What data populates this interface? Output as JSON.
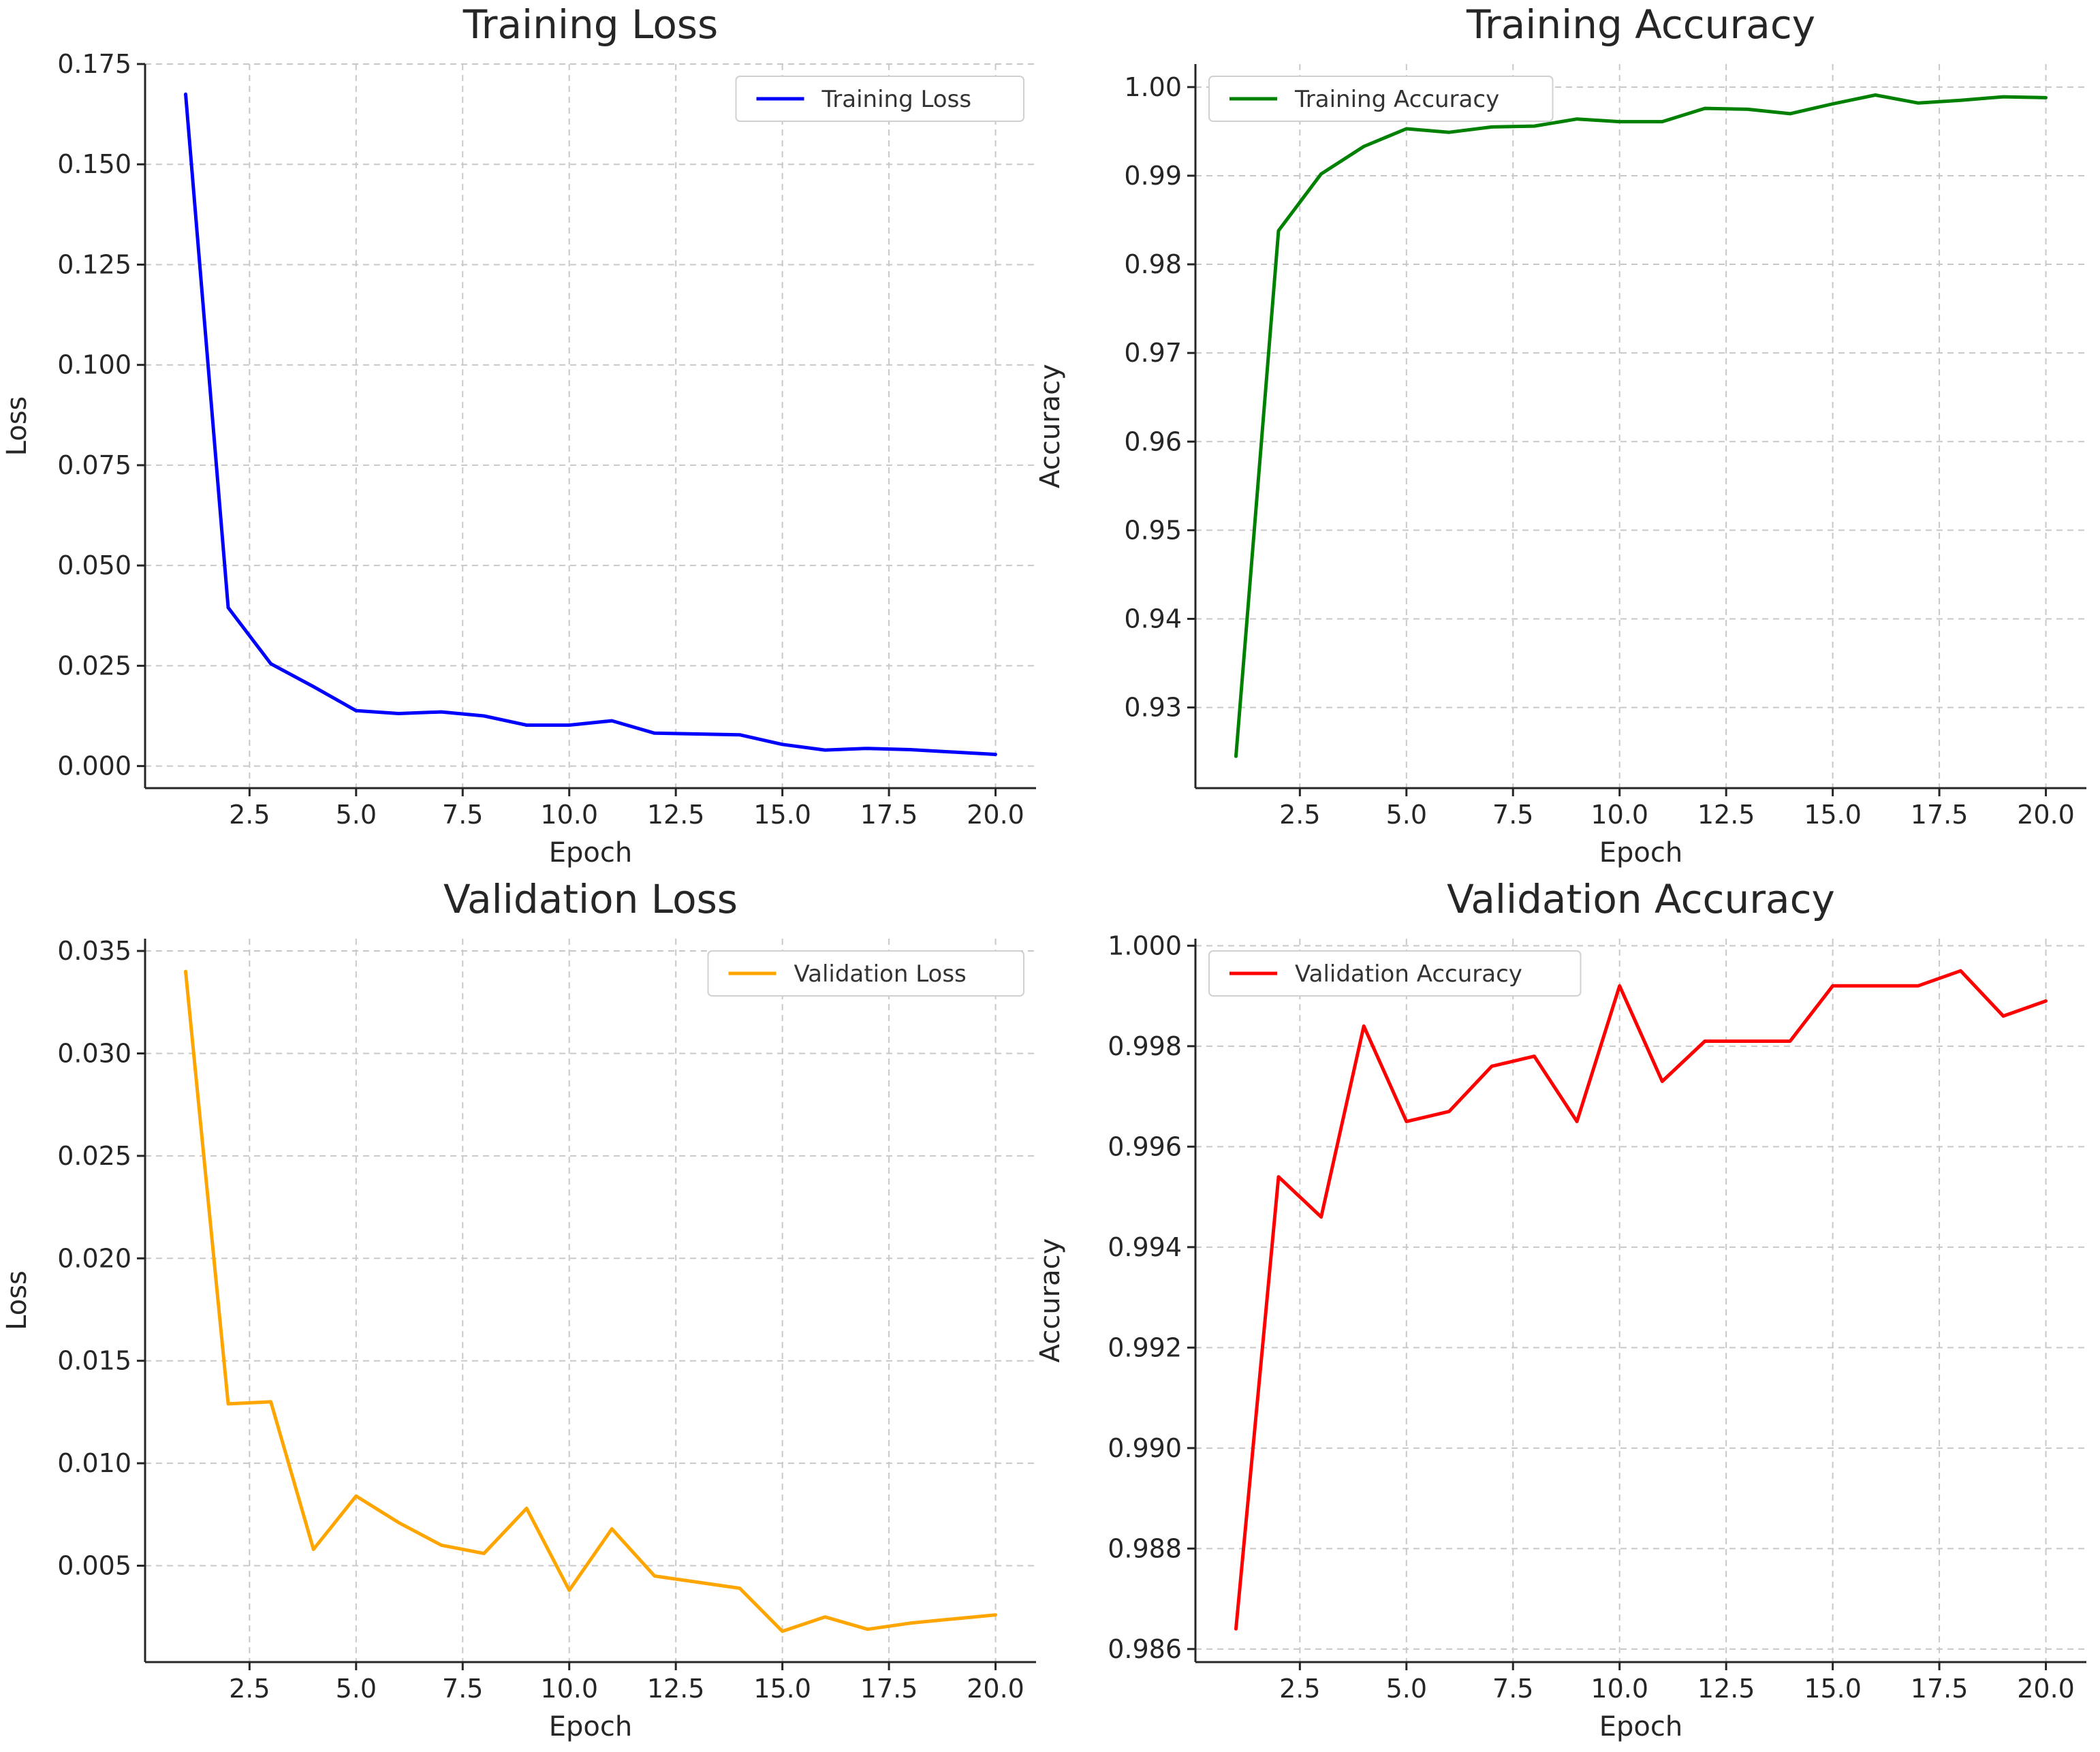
{
  "chart_data": [
    {
      "type": "line",
      "title": "Training Loss",
      "xlabel": "Epoch",
      "ylabel": "Loss",
      "xlim": [
        0.05,
        20.95
      ],
      "ylim": [
        -0.0055,
        0.175
      ],
      "xticks": [
        2.5,
        5.0,
        7.5,
        10.0,
        12.5,
        15.0,
        17.5,
        20.0
      ],
      "xtick_labels": [
        "2.5",
        "5.0",
        "7.5",
        "10.0",
        "12.5",
        "15.0",
        "17.5",
        "20.0"
      ],
      "yticks": [
        0.0,
        0.025,
        0.05,
        0.075,
        0.1,
        0.125,
        0.15,
        0.175
      ],
      "ytick_labels": [
        "0.000",
        "0.025",
        "0.050",
        "0.075",
        "0.100",
        "0.125",
        "0.150",
        "0.175"
      ],
      "grid": true,
      "legend": "upper-right",
      "series": [
        {
          "name": "Training Loss",
          "color": "#0000ff",
          "x": [
            1,
            2,
            3,
            4,
            5,
            6,
            7,
            8,
            9,
            10,
            11,
            12,
            13,
            14,
            15,
            16,
            17,
            18,
            19,
            20
          ],
          "y": [
            0.1675,
            0.0395,
            0.0255,
            0.0198,
            0.0138,
            0.0131,
            0.0135,
            0.0125,
            0.0102,
            0.0102,
            0.0113,
            0.0082,
            0.008,
            0.0078,
            0.0054,
            0.004,
            0.0044,
            0.0041,
            0.0035,
            0.0029
          ]
        }
      ]
    },
    {
      "type": "line",
      "title": "Training Accuracy",
      "xlabel": "Epoch",
      "ylabel": "Accuracy",
      "xlim": [
        0.05,
        20.95
      ],
      "ylim": [
        0.9209,
        1.0026
      ],
      "xticks": [
        2.5,
        5.0,
        7.5,
        10.0,
        12.5,
        15.0,
        17.5,
        20.0
      ],
      "xtick_labels": [
        "2.5",
        "5.0",
        "7.5",
        "10.0",
        "12.5",
        "15.0",
        "17.5",
        "20.0"
      ],
      "yticks": [
        0.93,
        0.94,
        0.95,
        0.96,
        0.97,
        0.98,
        0.99,
        1.0
      ],
      "ytick_labels": [
        "0.93",
        "0.94",
        "0.95",
        "0.96",
        "0.97",
        "0.98",
        "0.99",
        "1.00"
      ],
      "grid": true,
      "legend": "upper-left",
      "series": [
        {
          "name": "Training Accuracy",
          "color": "#008000",
          "x": [
            1,
            2,
            3,
            4,
            5,
            6,
            7,
            8,
            9,
            10,
            11,
            12,
            13,
            14,
            15,
            16,
            17,
            18,
            19,
            20
          ],
          "y": [
            0.9245,
            0.9838,
            0.9902,
            0.9933,
            0.9953,
            0.9949,
            0.9955,
            0.9956,
            0.9964,
            0.9961,
            0.9961,
            0.9976,
            0.9975,
            0.997,
            0.9981,
            0.9991,
            0.9982,
            0.9985,
            0.9989,
            0.9988
          ]
        }
      ]
    },
    {
      "type": "line",
      "title": "Validation Loss",
      "xlabel": "Epoch",
      "ylabel": "Loss",
      "xlim": [
        0.05,
        20.95
      ],
      "ylim": [
        0.000297,
        0.0356
      ],
      "xticks": [
        2.5,
        5.0,
        7.5,
        10.0,
        12.5,
        15.0,
        17.5,
        20.0
      ],
      "xtick_labels": [
        "2.5",
        "5.0",
        "7.5",
        "10.0",
        "12.5",
        "15.0",
        "17.5",
        "20.0"
      ],
      "yticks": [
        0.005,
        0.01,
        0.015,
        0.02,
        0.025,
        0.03,
        0.035
      ],
      "ytick_labels": [
        "0.005",
        "0.010",
        "0.015",
        "0.020",
        "0.025",
        "0.030",
        "0.035"
      ],
      "grid": true,
      "legend": "upper-right",
      "series": [
        {
          "name": "Validation Loss",
          "color": "#ffa500",
          "x": [
            1,
            2,
            3,
            4,
            5,
            6,
            7,
            8,
            9,
            10,
            11,
            12,
            13,
            14,
            15,
            16,
            17,
            18,
            19,
            20
          ],
          "y": [
            0.034,
            0.0129,
            0.013,
            0.0058,
            0.0084,
            0.0071,
            0.006,
            0.0056,
            0.0078,
            0.0038,
            0.0068,
            0.0045,
            0.0042,
            0.0039,
            0.0018,
            0.0025,
            0.0019,
            0.0022,
            0.0024,
            0.0026
          ]
        }
      ]
    },
    {
      "type": "line",
      "title": "Validation Accuracy",
      "xlabel": "Epoch",
      "ylabel": "Accuracy",
      "xlim": [
        0.05,
        20.95
      ],
      "ylim": [
        0.98574,
        1.00014
      ],
      "xticks": [
        2.5,
        5.0,
        7.5,
        10.0,
        12.5,
        15.0,
        17.5,
        20.0
      ],
      "xtick_labels": [
        "2.5",
        "5.0",
        "7.5",
        "10.0",
        "12.5",
        "15.0",
        "17.5",
        "20.0"
      ],
      "yticks": [
        0.986,
        0.988,
        0.99,
        0.992,
        0.994,
        0.996,
        0.998,
        1.0
      ],
      "ytick_labels": [
        "0.986",
        "0.988",
        "0.990",
        "0.992",
        "0.994",
        "0.996",
        "0.998",
        "1.000"
      ],
      "grid": true,
      "legend": "upper-left",
      "series": [
        {
          "name": "Validation Accuracy",
          "color": "#ff0000",
          "x": [
            1,
            2,
            3,
            4,
            5,
            6,
            7,
            8,
            9,
            10,
            11,
            12,
            13,
            14,
            15,
            16,
            17,
            18,
            19,
            20
          ],
          "y": [
            0.9864,
            0.9954,
            0.9946,
            0.9984,
            0.9965,
            0.9967,
            0.9976,
            0.9978,
            0.9965,
            0.9992,
            0.9973,
            0.9981,
            0.9981,
            0.9981,
            0.9992,
            0.9992,
            0.9992,
            0.9995,
            0.9986,
            0.9989
          ]
        }
      ]
    }
  ]
}
